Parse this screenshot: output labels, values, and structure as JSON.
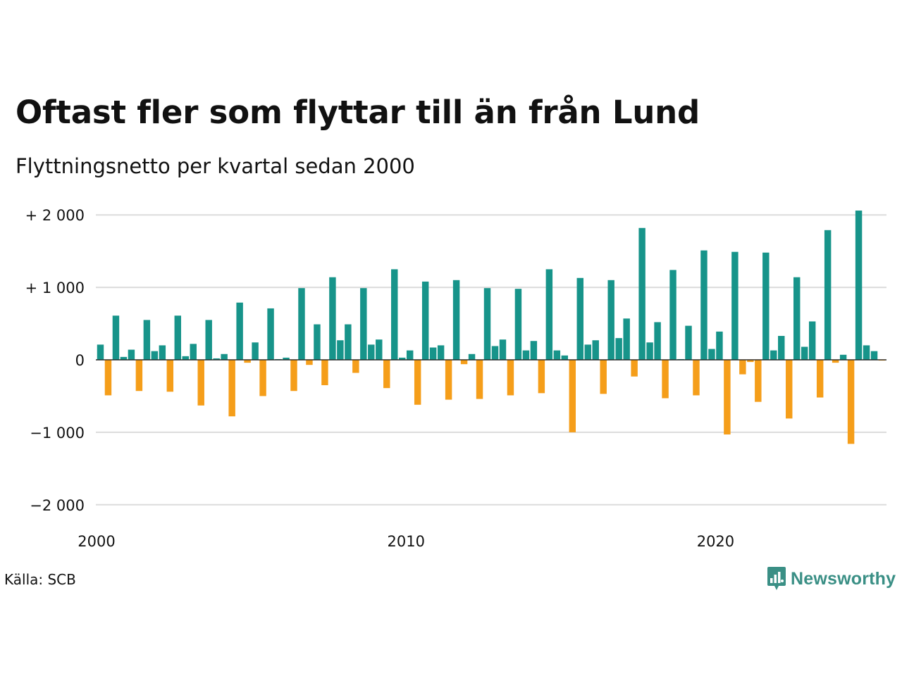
{
  "title": "Oftast fler som flyttar till än från Lund",
  "subtitle": "Flyttningsnetto per kvartal sedan 2000",
  "source": "Källa: SCB",
  "brand": {
    "name": "Newsworthy",
    "icon": "bar-chart-speech-bubble-icon",
    "color": "#3a8f85"
  },
  "colors": {
    "positive": "#17948a",
    "negative": "#f59e1a",
    "grid": "#dcdcdc"
  },
  "chart_data": {
    "type": "bar",
    "title": "Oftast fler som flyttar till än från Lund",
    "subtitle": "Flyttningsnetto per kvartal sedan 2000",
    "xlabel": "",
    "ylabel": "",
    "ylim": [
      -2200,
      2150
    ],
    "xlim": [
      2000,
      2025.5
    ],
    "grid": true,
    "legend": "none",
    "y_ticks": [
      {
        "value": 2000,
        "label": "+ 2 000"
      },
      {
        "value": 1000,
        "label": "+ 1 000"
      },
      {
        "value": 0,
        "label": "0"
      },
      {
        "value": -1000,
        "label": "−1 000"
      },
      {
        "value": -2000,
        "label": "−2 000"
      }
    ],
    "x_ticks": [
      {
        "value": 2000,
        "label": "2000"
      },
      {
        "value": 2010,
        "label": "2010"
      },
      {
        "value": 2020,
        "label": "2020"
      }
    ],
    "x_start": "2000 Q1",
    "categories": [
      "2000 Q1",
      "2000 Q2",
      "2000 Q3",
      "2000 Q4",
      "2001 Q1",
      "2001 Q2",
      "2001 Q3",
      "2001 Q4",
      "2002 Q1",
      "2002 Q2",
      "2002 Q3",
      "2002 Q4",
      "2003 Q1",
      "2003 Q2",
      "2003 Q3",
      "2003 Q4",
      "2004 Q1",
      "2004 Q2",
      "2004 Q3",
      "2004 Q4",
      "2005 Q1",
      "2005 Q2",
      "2005 Q3",
      "2005 Q4",
      "2006 Q1",
      "2006 Q2",
      "2006 Q3",
      "2006 Q4",
      "2007 Q1",
      "2007 Q2",
      "2007 Q3",
      "2007 Q4",
      "2008 Q1",
      "2008 Q2",
      "2008 Q3",
      "2008 Q4",
      "2009 Q1",
      "2009 Q2",
      "2009 Q3",
      "2009 Q4",
      "2010 Q1",
      "2010 Q2",
      "2010 Q3",
      "2010 Q4",
      "2011 Q1",
      "2011 Q2",
      "2011 Q3",
      "2011 Q4",
      "2012 Q1",
      "2012 Q2",
      "2012 Q3",
      "2012 Q4",
      "2013 Q1",
      "2013 Q2",
      "2013 Q3",
      "2013 Q4",
      "2014 Q1",
      "2014 Q2",
      "2014 Q3",
      "2014 Q4",
      "2015 Q1",
      "2015 Q2",
      "2015 Q3",
      "2015 Q4",
      "2016 Q1",
      "2016 Q2",
      "2016 Q3",
      "2016 Q4",
      "2017 Q1",
      "2017 Q2",
      "2017 Q3",
      "2017 Q4",
      "2018 Q1",
      "2018 Q2",
      "2018 Q3",
      "2018 Q4",
      "2019 Q1",
      "2019 Q2",
      "2019 Q3",
      "2019 Q4",
      "2020 Q1",
      "2020 Q2",
      "2020 Q3",
      "2020 Q4",
      "2021 Q1",
      "2021 Q2",
      "2021 Q3",
      "2021 Q4",
      "2022 Q1",
      "2022 Q2",
      "2022 Q3",
      "2022 Q4",
      "2023 Q1",
      "2023 Q2",
      "2023 Q3",
      "2023 Q4",
      "2024 Q1",
      "2024 Q2",
      "2024 Q3",
      "2024 Q4",
      "2025 Q1",
      "2025 Q2"
    ],
    "values": [
      210,
      -490,
      610,
      40,
      140,
      -430,
      550,
      120,
      200,
      -440,
      610,
      50,
      220,
      -630,
      550,
      20,
      80,
      -780,
      790,
      -40,
      240,
      -500,
      710,
      10,
      30,
      -430,
      990,
      -70,
      490,
      -350,
      1140,
      270,
      490,
      -180,
      990,
      210,
      280,
      -390,
      1250,
      30,
      130,
      -620,
      1080,
      170,
      200,
      -550,
      1100,
      -60,
      80,
      -540,
      990,
      190,
      280,
      -490,
      980,
      130,
      260,
      -460,
      1250,
      130,
      60,
      -1000,
      1130,
      210,
      270,
      -470,
      1100,
      300,
      570,
      -230,
      1820,
      240,
      520,
      -530,
      1240,
      10,
      470,
      -490,
      1510,
      150,
      390,
      -1030,
      1490,
      -200,
      -30,
      -580,
      1480,
      130,
      330,
      -810,
      1140,
      180,
      530,
      -520,
      1790,
      -40,
      70,
      -1160,
      2060,
      200,
      120,
      -10
    ]
  }
}
